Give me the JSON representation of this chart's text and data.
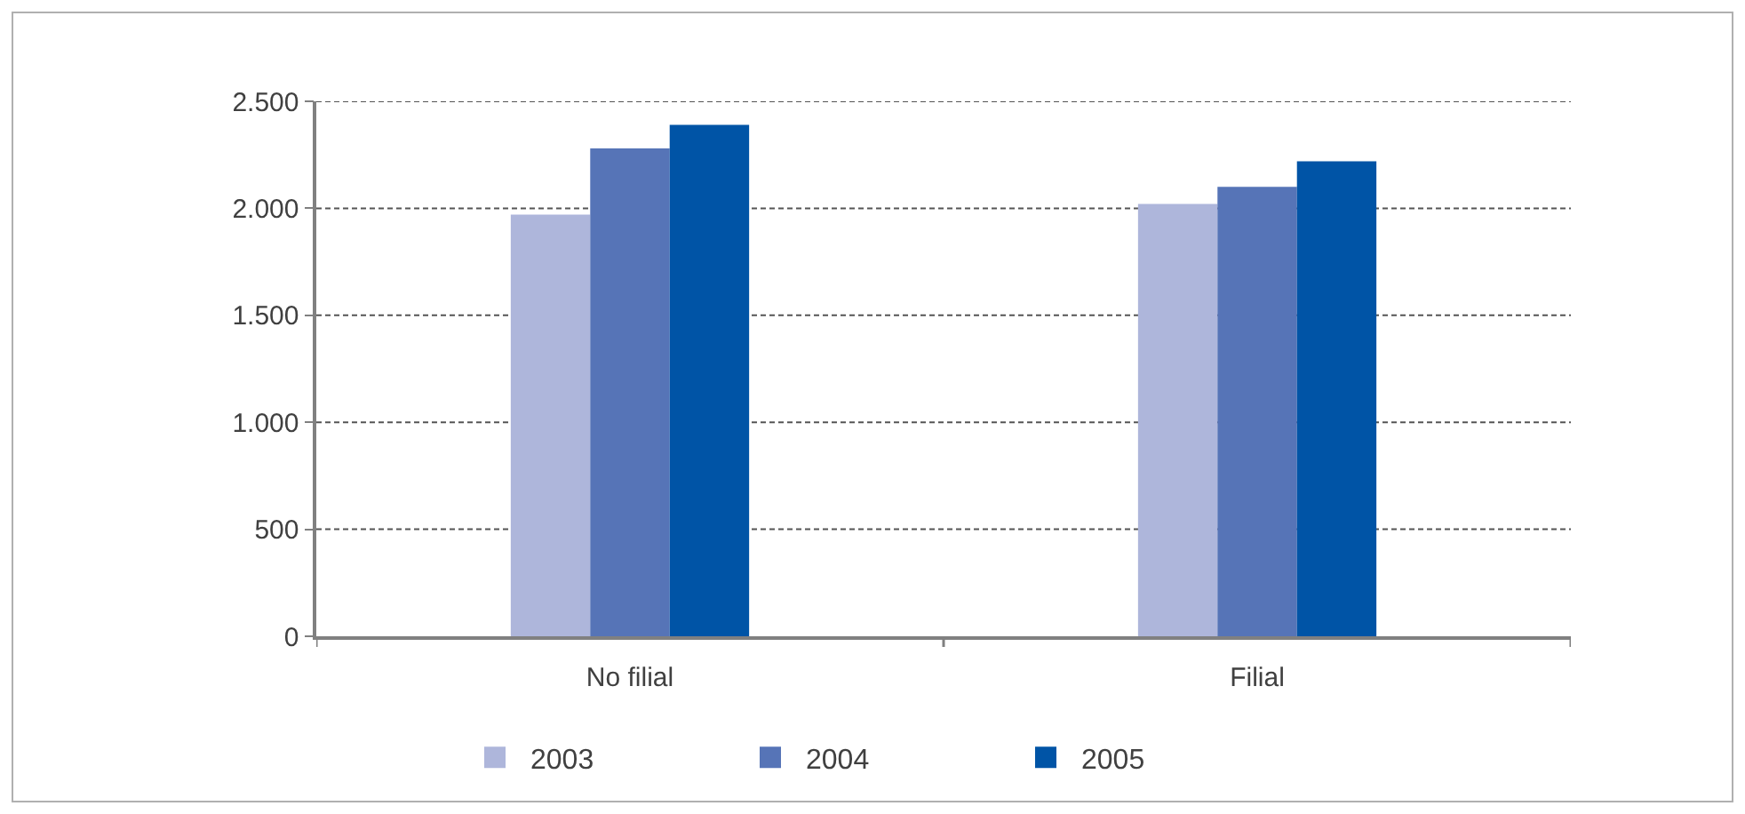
{
  "chart_data": {
    "type": "bar",
    "categories": [
      "No filial",
      "Filial"
    ],
    "series": [
      {
        "name": "2003",
        "color": "#aeb6db",
        "values": [
          1970,
          2020
        ]
      },
      {
        "name": "2004",
        "color": "#5674b7",
        "values": [
          2280,
          2100
        ]
      },
      {
        "name": "2005",
        "color": "#0054a6",
        "values": [
          2390,
          2220
        ]
      }
    ],
    "ylim": [
      0,
      2500
    ],
    "yticks": [
      0,
      500,
      {
        "value": 1000,
        "label": "1.000"
      },
      {
        "value": 1500,
        "label": "1.500"
      },
      {
        "value": 2000,
        "label": "2.000"
      },
      {
        "value": 2500,
        "label": "2.500"
      }
    ],
    "grid": "y",
    "legend": "bottom"
  }
}
